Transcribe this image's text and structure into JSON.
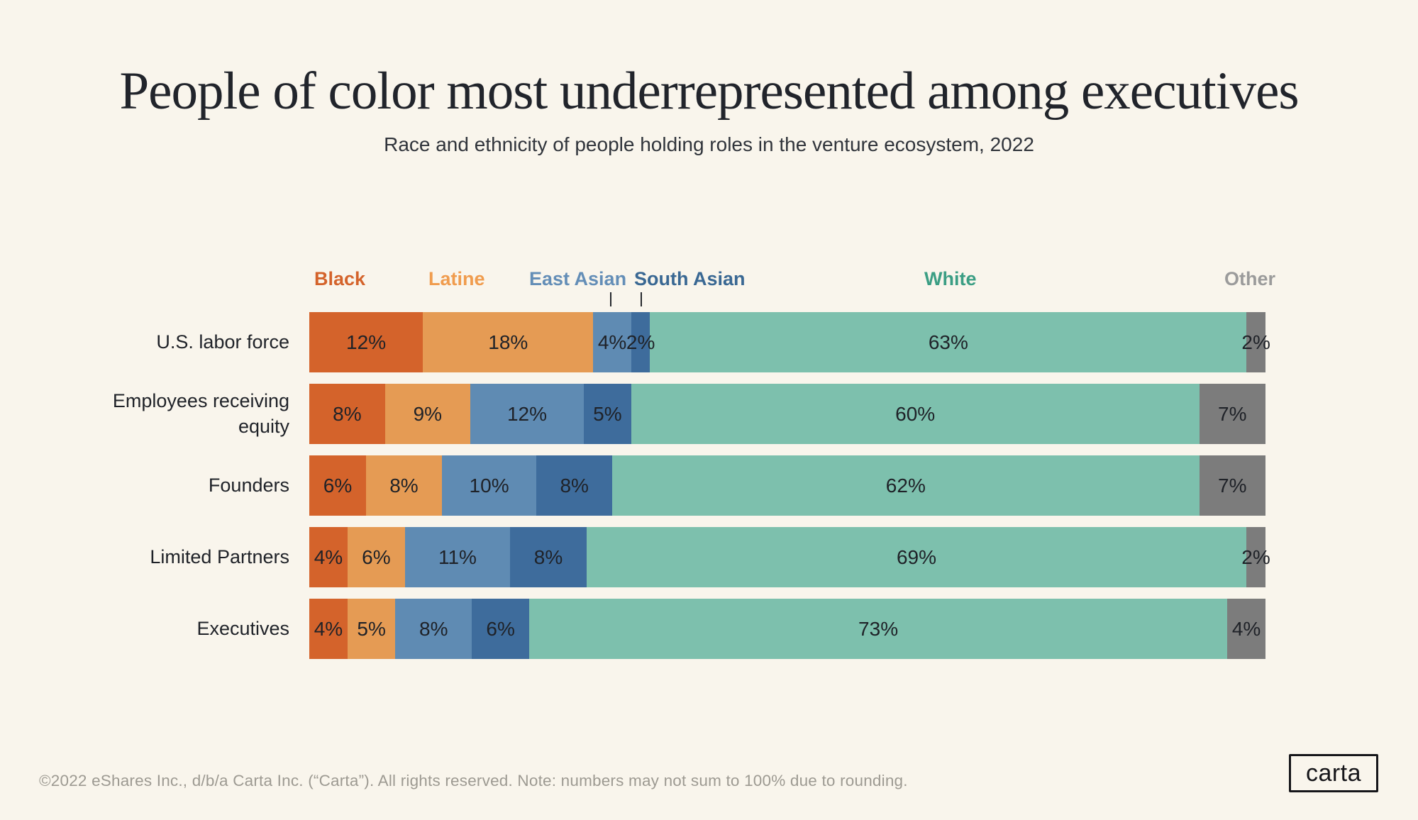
{
  "page": {
    "background_color": "#F9F5EC"
  },
  "header": {
    "title": "People of color most underrepresented among executives",
    "subtitle": "Race and ethnicity of people holding roles in the venture ecosystem, 2022"
  },
  "chart_data": {
    "type": "bar",
    "orientation": "horizontal_stacked",
    "unit": "%",
    "grid": false,
    "legend_position": "top",
    "legend": [
      {
        "label": "Black",
        "segment_color": "#D4632B",
        "text_color": "#D4632B"
      },
      {
        "label": "Latine",
        "segment_color": "#E59B54",
        "text_color": "#F09C4E"
      },
      {
        "label": "East Asian",
        "segment_color": "#5F8BB3",
        "text_color": "#648EB7"
      },
      {
        "label": "South Asian",
        "segment_color": "#3E6C9C",
        "text_color": "#3A6893"
      },
      {
        "label": "White",
        "segment_color": "#7DC0AD",
        "text_color": "#3B9E84"
      },
      {
        "label": "Other",
        "segment_color": "#7C7C7C",
        "text_color": "#9B9B9B"
      }
    ],
    "categories": [
      "U.S. labor force",
      "Employees receiving equity",
      "Founders",
      "Limited Partners",
      "Executives"
    ],
    "series": [
      {
        "name": "Black",
        "values": [
          12,
          8,
          6,
          4,
          4
        ]
      },
      {
        "name": "Latine",
        "values": [
          18,
          9,
          8,
          6,
          5
        ]
      },
      {
        "name": "East Asian",
        "values": [
          4,
          12,
          10,
          11,
          8
        ]
      },
      {
        "name": "South Asian",
        "values": [
          2,
          5,
          8,
          8,
          6
        ]
      },
      {
        "name": "White",
        "values": [
          63,
          60,
          62,
          69,
          73
        ]
      },
      {
        "name": "Other",
        "values": [
          2,
          7,
          7,
          2,
          4
        ]
      }
    ],
    "value_label_format": "{value}%"
  },
  "footer": {
    "copyright": "©2022 eShares Inc., d/b/a Carta Inc. (“Carta”). All rights reserved. Note: numbers may not sum to 100% due to rounding.",
    "logo_text": "carta"
  }
}
